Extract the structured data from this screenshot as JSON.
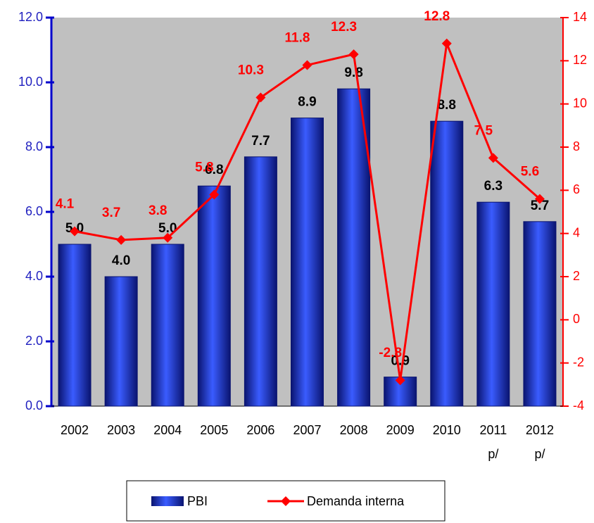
{
  "chart_data": {
    "type": "bar",
    "categories": [
      "2002",
      "2003",
      "2004",
      "2005",
      "2006",
      "2007",
      "2008",
      "2009",
      "2010",
      "2011\np/",
      "2012\np/"
    ],
    "series": [
      {
        "name": "PBI",
        "type": "bar",
        "color": "#1f35d6",
        "values": [
          5.0,
          4.0,
          5.0,
          6.8,
          7.7,
          8.9,
          9.8,
          0.9,
          8.8,
          6.3,
          5.7
        ],
        "value_labels": [
          "5.0",
          "4.0",
          "5.0",
          "6.8",
          "7.7",
          "8.9",
          "9.8",
          "0.9",
          "8.8",
          "6.3",
          "5.7"
        ]
      },
      {
        "name": "Demanda interna",
        "type": "line",
        "color": "#ff0000",
        "axis": "y2",
        "values": [
          4.1,
          3.7,
          3.8,
          5.8,
          10.3,
          11.8,
          12.3,
          -2.8,
          12.8,
          7.5,
          5.6
        ]
      }
    ],
    "ylim": [
      0,
      12
    ],
    "yticks": [
      {
        "value": 0,
        "label": "0.0"
      },
      {
        "value": 2,
        "label": "2.0"
      },
      {
        "value": 4,
        "label": "4.0"
      },
      {
        "value": 6,
        "label": "6.0"
      },
      {
        "value": 8,
        "label": "8.0"
      },
      {
        "value": 10,
        "label": "10.0"
      },
      {
        "value": 12,
        "label": "12.0"
      }
    ],
    "y2lim": [
      -4,
      14
    ],
    "y2ticks": [
      -4,
      -2,
      0,
      2,
      4,
      6,
      8,
      10,
      12,
      14
    ],
    "legend": "bottom"
  }
}
